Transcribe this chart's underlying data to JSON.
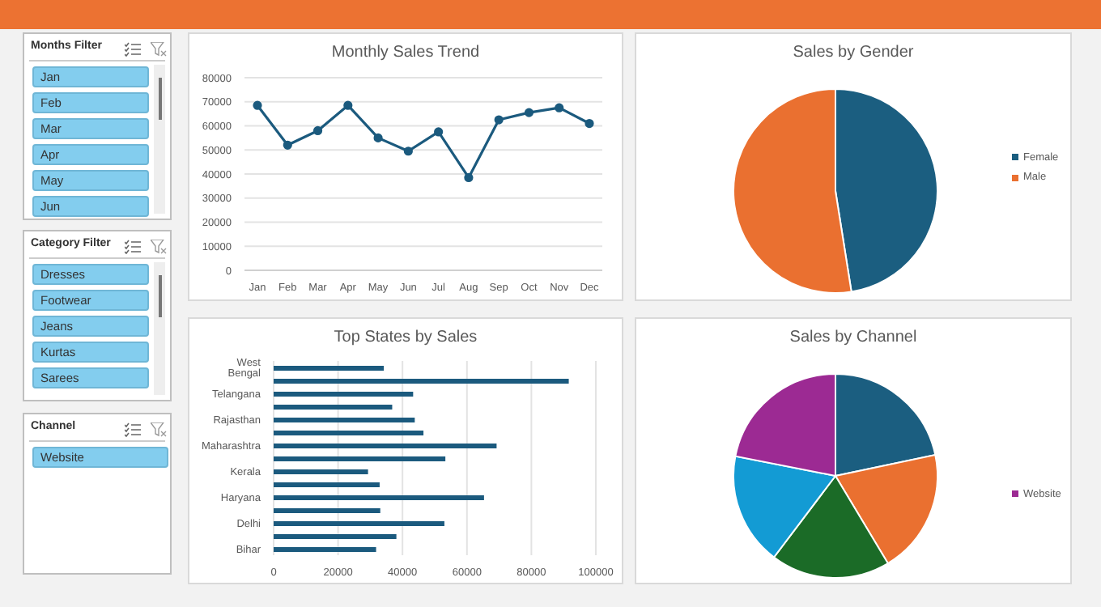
{
  "chart_data": [
    {
      "type": "other",
      "title": "Months Filter",
      "annotations": [
        "Jan",
        "Feb",
        "Mar",
        "Apr",
        "May",
        "Jun"
      ]
    },
    {
      "type": "other",
      "title": "Category Filter",
      "annotations": [
        "Dresses",
        "Footwear",
        "Jeans",
        "Kurtas",
        "Sarees"
      ]
    },
    {
      "type": "other",
      "title": "Channel",
      "annotations": [
        "Website"
      ]
    },
    {
      "type": "line",
      "title": "Monthly Sales Trend",
      "categories": [
        "Jan",
        "Feb",
        "Mar",
        "Apr",
        "May",
        "Jun",
        "Jul",
        "Aug",
        "Sep",
        "Oct",
        "Nov",
        "Dec"
      ],
      "series": [
        {
          "color": "#1b5a7e",
          "values": [
            68500,
            52000,
            58000,
            68500,
            55000,
            49500,
            57500,
            38500,
            62500,
            65500,
            67500,
            61000
          ]
        }
      ],
      "ylim": [
        0,
        80000
      ],
      "yticks": [
        0,
        10000,
        20000,
        30000,
        40000,
        50000,
        60000,
        70000,
        80000
      ],
      "grid": "y",
      "marker": "circle"
    },
    {
      "type": "pie",
      "title": "Sales by Gender",
      "categories": [
        "Female",
        "Male"
      ],
      "values": [
        47.5,
        52.5
      ],
      "colors": [
        "#1b5e80",
        "#ea7030"
      ],
      "legend": "right"
    },
    {
      "type": "bar",
      "orientation": "horizontal",
      "title": "Top States by Sales",
      "categories": [
        "West Bengal",
        null,
        "Telangana",
        null,
        "Rajasthan",
        null,
        "Maharashtra",
        null,
        "Kerala",
        null,
        "Haryana",
        null,
        "Delhi",
        null,
        "Bihar"
      ],
      "series": [
        {
          "color": "#1b5a7e",
          "values": [
            34200,
            91600,
            43300,
            36800,
            43800,
            46500,
            69200,
            53300,
            29300,
            32900,
            65300,
            33100,
            53000,
            38100,
            31800
          ]
        }
      ],
      "xlim": [
        0,
        100000
      ],
      "xticks": [
        0,
        20000,
        40000,
        60000,
        80000,
        100000
      ],
      "grid": "x"
    },
    {
      "type": "pie",
      "title": "Sales by Channel",
      "categories": [
        null,
        null,
        null,
        null,
        "Website"
      ],
      "values": [
        21.7,
        19.7,
        18.9,
        17.8,
        21.9
      ],
      "colors": [
        "#1b5e80",
        "#ea7030",
        "#1b6b27",
        "#139bd4",
        "#9c2a93"
      ],
      "legend": "right"
    }
  ]
}
